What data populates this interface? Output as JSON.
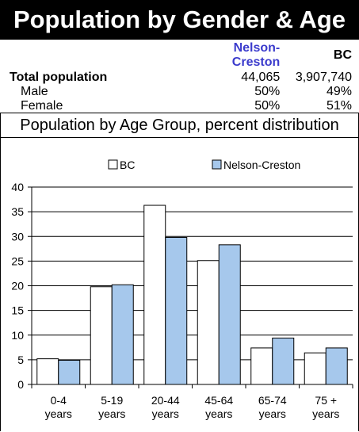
{
  "title": "Population by Gender & Age",
  "stats_table": {
    "col_local": "Nelson-Creston",
    "col_bc": "BC",
    "accent_color": "#3b3bcc",
    "rows": [
      {
        "label": "Total population",
        "local": "44,065",
        "bc": "3,907,740",
        "bold": true
      },
      {
        "label": "Male",
        "local": "50%",
        "bc": "49%",
        "bold": false
      },
      {
        "label": "Female",
        "local": "50%",
        "bc": "51%",
        "bold": false
      }
    ]
  },
  "chart_subtitle": "Population by Age Group, percent distribution",
  "chart_data": {
    "type": "bar",
    "categories": [
      [
        "0-4",
        "years"
      ],
      [
        "5-19",
        "years"
      ],
      [
        "20-44",
        "years"
      ],
      [
        "45-64",
        "years"
      ],
      [
        "65-74",
        "years"
      ],
      [
        "75 +",
        "years"
      ]
    ],
    "series": [
      {
        "name": "BC",
        "color": "#ffffff",
        "values": [
          5.2,
          19.8,
          36.3,
          25.1,
          7.4,
          6.4
        ]
      },
      {
        "name": "Nelson-Creston",
        "color": "#a6c8ec",
        "values": [
          4.9,
          20.2,
          29.8,
          28.3,
          9.4,
          7.4
        ]
      }
    ],
    "ylim": [
      0,
      40
    ],
    "yticks": [
      0,
      5,
      10,
      15,
      20,
      25,
      30,
      35,
      40
    ],
    "grid": true,
    "legend": "top"
  }
}
